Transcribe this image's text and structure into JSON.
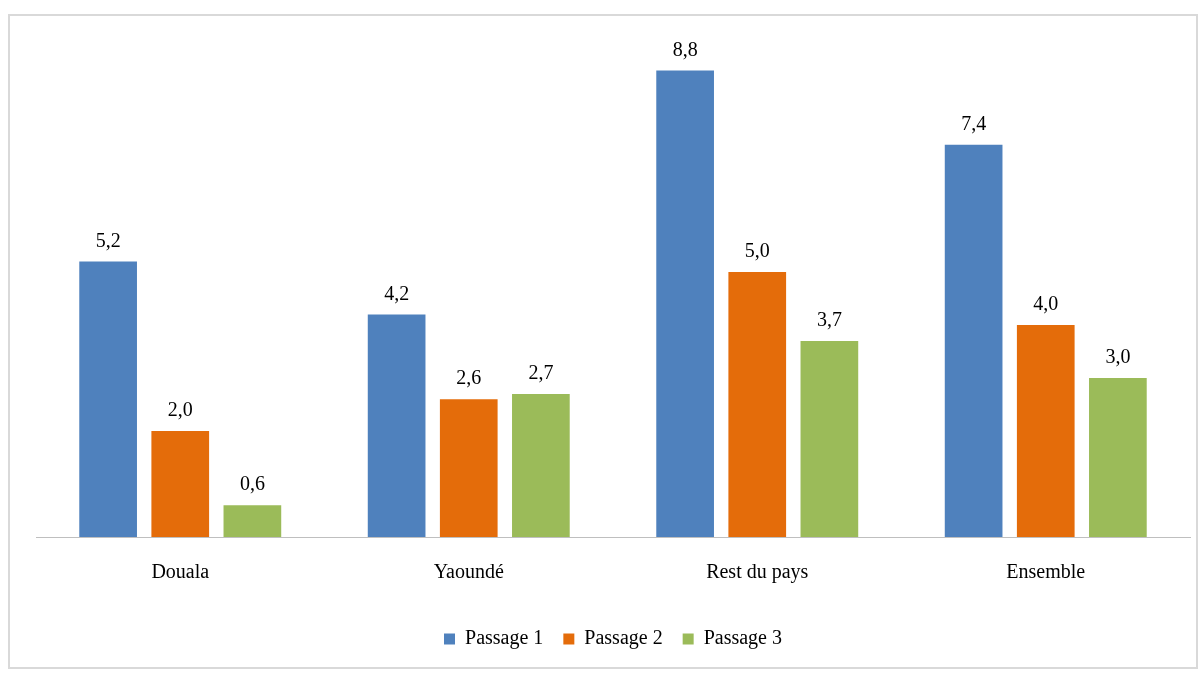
{
  "chart_data": {
    "type": "bar",
    "categories": [
      "Douala",
      "Yaoundé",
      "Rest du pays",
      "Ensemble"
    ],
    "series": [
      {
        "name": "Passage 1",
        "color": "#4f81bd",
        "values": [
          5.2,
          4.2,
          8.8,
          7.4
        ],
        "value_labels": [
          "5,2",
          "4,2",
          "8,8",
          "7,4"
        ]
      },
      {
        "name": "Passage 2",
        "color": "#e46c0a",
        "values": [
          2.0,
          2.6,
          5.0,
          4.0
        ],
        "value_labels": [
          "2,0",
          "2,6",
          "5,0",
          "4,0"
        ]
      },
      {
        "name": "Passage 3",
        "color": "#9bbb59",
        "values": [
          0.6,
          2.7,
          3.7,
          3.0
        ],
        "value_labels": [
          "0,6",
          "2,7",
          "3,7",
          "3,0"
        ]
      }
    ],
    "grid": false,
    "legend": "bottom",
    "tick_labels": "x"
  }
}
